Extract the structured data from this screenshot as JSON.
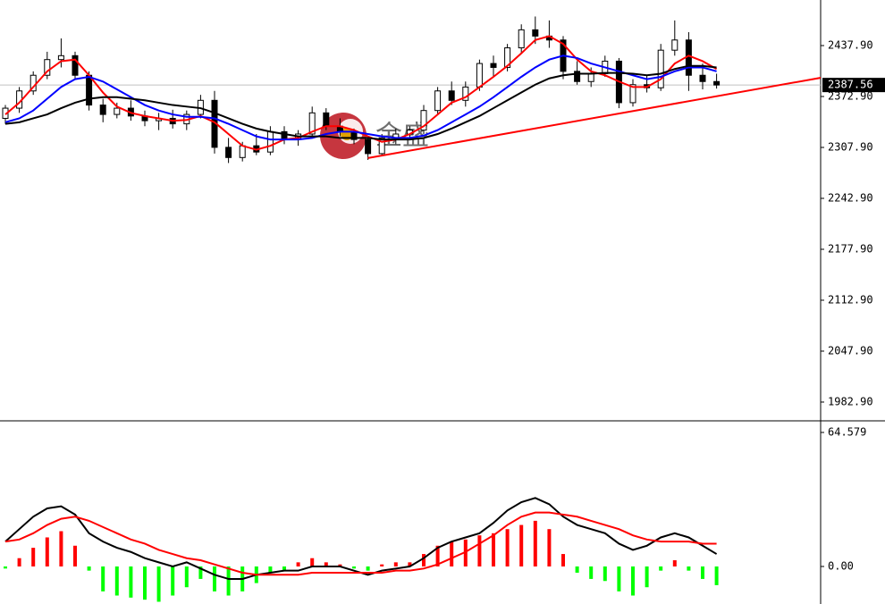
{
  "chart_data": [
    {
      "type": "candlestick",
      "watermark": "金盛",
      "open": [
        2345,
        2358,
        2380,
        2400,
        2420,
        2425,
        2400,
        2362,
        2350,
        2358,
        2348,
        2342,
        2345,
        2338,
        2350,
        2368,
        2308,
        2295,
        2310,
        2302,
        2328,
        2318,
        2325,
        2352,
        2335,
        2328,
        2318,
        2300,
        2320,
        2325,
        2330,
        2355,
        2380,
        2368,
        2385,
        2415,
        2410,
        2435,
        2458,
        2450,
        2445,
        2405,
        2392,
        2402,
        2418,
        2365,
        2388,
        2384,
        2432,
        2445,
        2400,
        2392
      ],
      "high": [
        2362,
        2385,
        2405,
        2430,
        2447,
        2430,
        2405,
        2370,
        2365,
        2368,
        2355,
        2352,
        2356,
        2355,
        2375,
        2380,
        2320,
        2315,
        2325,
        2335,
        2335,
        2330,
        2360,
        2358,
        2345,
        2332,
        2322,
        2325,
        2332,
        2335,
        2362,
        2385,
        2392,
        2392,
        2420,
        2425,
        2440,
        2465,
        2475,
        2470,
        2450,
        2418,
        2410,
        2425,
        2422,
        2395,
        2400,
        2440,
        2470,
        2455,
        2415,
        2402
      ],
      "low": [
        2338,
        2352,
        2375,
        2395,
        2410,
        2395,
        2355,
        2340,
        2345,
        2342,
        2335,
        2330,
        2332,
        2330,
        2345,
        2300,
        2288,
        2290,
        2298,
        2298,
        2312,
        2310,
        2320,
        2330,
        2322,
        2312,
        2292,
        2298,
        2312,
        2318,
        2325,
        2350,
        2362,
        2360,
        2380,
        2398,
        2405,
        2428,
        2440,
        2435,
        2395,
        2388,
        2385,
        2398,
        2358,
        2360,
        2378,
        2380,
        2425,
        2380,
        2382,
        2383
      ],
      "close": [
        2358,
        2380,
        2400,
        2420,
        2425,
        2400,
        2362,
        2350,
        2358,
        2348,
        2342,
        2345,
        2338,
        2350,
        2368,
        2308,
        2295,
        2310,
        2302,
        2328,
        2318,
        2325,
        2352,
        2335,
        2328,
        2318,
        2300,
        2320,
        2325,
        2330,
        2355,
        2380,
        2368,
        2385,
        2415,
        2410,
        2435,
        2458,
        2450,
        2445,
        2405,
        2392,
        2402,
        2418,
        2365,
        2388,
        2384,
        2432,
        2445,
        2400,
        2392,
        2387.56
      ],
      "up_color": "#ffffff",
      "down_color": "#000000",
      "lines": [
        {
          "color": "#ff0000",
          "values": [
            2350,
            2365,
            2385,
            2405,
            2418,
            2420,
            2400,
            2378,
            2360,
            2352,
            2348,
            2345,
            2342,
            2343,
            2348,
            2340,
            2325,
            2310,
            2305,
            2310,
            2318,
            2320,
            2328,
            2335,
            2335,
            2330,
            2322,
            2315,
            2318,
            2325,
            2335,
            2350,
            2365,
            2372,
            2385,
            2398,
            2412,
            2428,
            2445,
            2450,
            2440,
            2420,
            2405,
            2400,
            2392,
            2385,
            2385,
            2395,
            2415,
            2425,
            2418,
            2408
          ]
        },
        {
          "color": "#0000ff",
          "values": [
            2340,
            2345,
            2355,
            2370,
            2385,
            2395,
            2398,
            2392,
            2382,
            2372,
            2362,
            2355,
            2350,
            2347,
            2347,
            2345,
            2338,
            2330,
            2322,
            2318,
            2318,
            2318,
            2320,
            2325,
            2328,
            2328,
            2325,
            2322,
            2320,
            2320,
            2323,
            2330,
            2340,
            2350,
            2360,
            2372,
            2385,
            2398,
            2410,
            2420,
            2425,
            2422,
            2415,
            2410,
            2405,
            2400,
            2395,
            2398,
            2405,
            2410,
            2410,
            2405
          ]
        },
        {
          "color": "#000000",
          "values": [
            2338,
            2340,
            2345,
            2350,
            2358,
            2365,
            2370,
            2372,
            2372,
            2370,
            2368,
            2365,
            2362,
            2360,
            2358,
            2352,
            2345,
            2338,
            2332,
            2328,
            2325,
            2322,
            2322,
            2322,
            2320,
            2320,
            2320,
            2318,
            2318,
            2318,
            2320,
            2325,
            2332,
            2340,
            2348,
            2358,
            2368,
            2378,
            2388,
            2396,
            2400,
            2402,
            2402,
            2403,
            2403,
            2402,
            2400,
            2402,
            2408,
            2412,
            2412,
            2410
          ]
        }
      ],
      "trendline": {
        "color": "#ff0000",
        "x": [
          26,
          58.5
        ],
        "values": [
          2294.3,
          2396.9
        ]
      },
      "last_price": 2387.56,
      "ylim": [
        1960.07,
        2496.06
      ],
      "yticks": [
        {
          "value": 2437.9,
          "label": "2437.90"
        },
        {
          "value": 2372.9,
          "label": "2372.90"
        },
        {
          "value": 2307.9,
          "label": "2307.90"
        },
        {
          "value": 2242.9,
          "label": "2242.90"
        },
        {
          "value": 2177.9,
          "label": "2177.90"
        },
        {
          "value": 2112.9,
          "label": "2112.90"
        },
        {
          "value": 2047.9,
          "label": "2047.90"
        },
        {
          "value": 1982.9,
          "label": "1982.90"
        }
      ]
    },
    {
      "type": "macd",
      "histogram": {
        "up_color": "#ff0000",
        "down_color": "#00ff00",
        "values": [
          -1,
          4,
          9,
          14,
          17,
          10,
          -2,
          -12,
          -14,
          -15,
          -16,
          -17,
          -14,
          -10,
          -6,
          -12,
          -14,
          -12,
          -8,
          -3,
          -2,
          2,
          4,
          2,
          1,
          -1,
          -2,
          1,
          2,
          2,
          6,
          10,
          12,
          13,
          15,
          16,
          18,
          20,
          22,
          18,
          6,
          -3,
          -6,
          -7,
          -12,
          -14,
          -10,
          -2,
          3,
          -2,
          -6,
          -9
        ]
      },
      "lines": [
        {
          "color": "#000000",
          "values": [
            12,
            18,
            24,
            28,
            29,
            25,
            16,
            12,
            9,
            7,
            4,
            2,
            0,
            2,
            -1,
            -4,
            -6,
            -6,
            -4,
            -3,
            -2,
            -2,
            0,
            0,
            0,
            -2,
            -4,
            -2,
            -1,
            0,
            4,
            9,
            12,
            14,
            16,
            21,
            27,
            31,
            33,
            30,
            24,
            20,
            18,
            16,
            11,
            8,
            10,
            14,
            16,
            14,
            10,
            6
          ]
        },
        {
          "color": "#ff0000",
          "values": [
            12,
            13,
            16,
            20,
            23,
            24,
            22,
            19,
            16,
            13,
            11,
            8,
            6,
            4,
            3,
            1,
            -1,
            -3,
            -4,
            -4,
            -4,
            -4,
            -3,
            -3,
            -3,
            -3,
            -3,
            -3,
            -2,
            -2,
            -1,
            1,
            4,
            7,
            11,
            15,
            20,
            24,
            26,
            26,
            25,
            24,
            22,
            20,
            18,
            15,
            13,
            12,
            12,
            12,
            11,
            11
          ]
        }
      ],
      "ylim": [
        -18.08,
        69.74
      ],
      "yticks": [
        64.579,
        {
          "value": 0,
          "label": "0.00"
        }
      ]
    }
  ]
}
